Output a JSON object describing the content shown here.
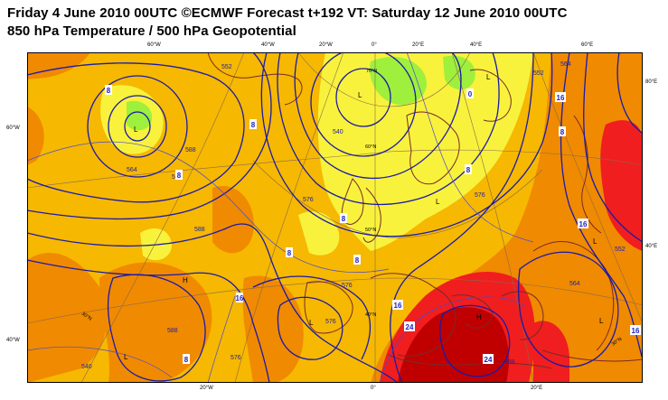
{
  "header": {
    "title_line1": "Friday 4 June 2010 00UTC ©ECMWF Forecast t+192 VT: Saturday 12 June 2010 00UTC",
    "title_line2": "850 hPa Temperature / 500 hPa Geopotential"
  },
  "frame_labels": {
    "top": [
      "60°W",
      "40°W",
      "20°W",
      "0°",
      "20°E",
      "40°E",
      "60°E"
    ],
    "left": [
      "60°W",
      "40°W"
    ],
    "right": [
      "80°E",
      "40°E"
    ],
    "bottom": [
      "20°W",
      "0°",
      "20°E"
    ]
  },
  "grid_labels": [
    "70°N",
    "60°N",
    "50°N",
    "40°N",
    "30°N",
    "30°N"
  ],
  "geopotential_labels": [
    "552",
    "564",
    "576",
    "588",
    "576",
    "540",
    "552",
    "564",
    "576",
    "588",
    "576",
    "540",
    "576",
    "564",
    "552",
    "588",
    "576",
    "588"
  ],
  "temperature_labels": [
    "16",
    "8",
    "8",
    "0",
    "8",
    "8",
    "8",
    "8",
    "16",
    "16",
    "24",
    "24",
    "16",
    "8",
    "8",
    "16",
    "8"
  ],
  "pressure_centres": [
    "L",
    "L",
    "L",
    "L",
    "L",
    "L",
    "H",
    "H",
    "L",
    "L"
  ],
  "colors": {
    "background": "#f6b800",
    "warm_orange": "#f08a00",
    "hot_red": "#f01e1e",
    "very_hot": "#c00000",
    "cool_yellow": "#f8f23c",
    "cold_green": "#9ef03c",
    "contour_blue": "#1a1aa8",
    "coast_brown": "#7a2a2a"
  }
}
